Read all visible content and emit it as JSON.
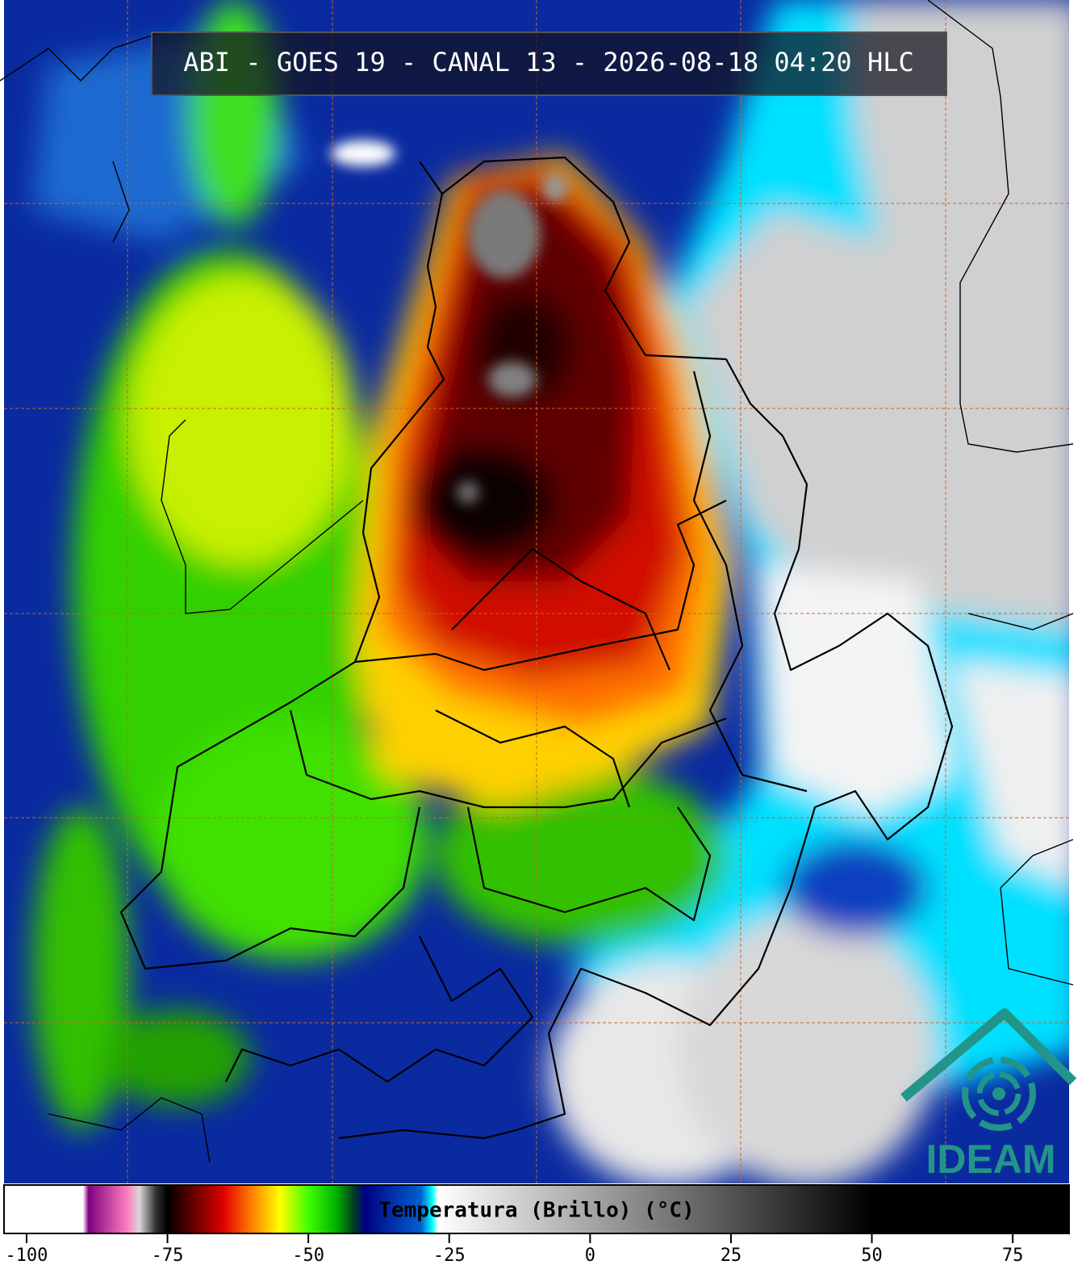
{
  "header": {
    "title": "ABI - GOES 19 - CANAL 13 - 2026-08-18 04:20 HLC"
  },
  "logo": {
    "text": "IDEAM"
  },
  "colorbar": {
    "label": "Temperatura (Brillo) (°C)",
    "range": [
      -104,
      85
    ],
    "ticks": [
      -100,
      -75,
      -50,
      -25,
      0,
      25,
      50,
      75
    ],
    "stops": [
      {
        "value": -104,
        "color": "#ffffff"
      },
      {
        "value": -90,
        "color": "#ffffff"
      },
      {
        "value": -89,
        "color": "#800080"
      },
      {
        "value": -82,
        "color": "#ff80c0"
      },
      {
        "value": -80,
        "color": "#d8d8d8"
      },
      {
        "value": -77,
        "color": "#303030"
      },
      {
        "value": -75,
        "color": "#000000"
      },
      {
        "value": -70,
        "color": "#700000"
      },
      {
        "value": -65,
        "color": "#e00000"
      },
      {
        "value": -60,
        "color": "#ff8000"
      },
      {
        "value": -55,
        "color": "#ffff00"
      },
      {
        "value": -50,
        "color": "#40ff00"
      },
      {
        "value": -45,
        "color": "#00b000"
      },
      {
        "value": -42,
        "color": "#004020"
      },
      {
        "value": -40,
        "color": "#000080"
      },
      {
        "value": -30,
        "color": "#0060d0"
      },
      {
        "value": -28,
        "color": "#00ffff"
      },
      {
        "value": -27,
        "color": "#ffffff"
      },
      {
        "value": 50,
        "color": "#000000"
      },
      {
        "value": 85,
        "color": "#000000"
      }
    ]
  }
}
